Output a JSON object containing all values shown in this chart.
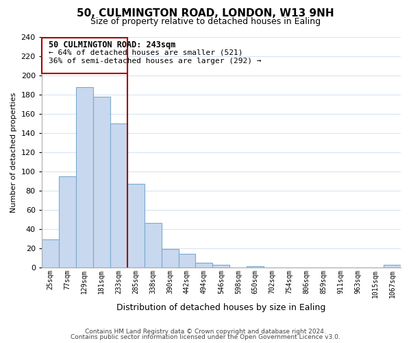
{
  "title": "50, CULMINGTON ROAD, LONDON, W13 9NH",
  "subtitle": "Size of property relative to detached houses in Ealing",
  "xlabel": "Distribution of detached houses by size in Ealing",
  "ylabel": "Number of detached properties",
  "bin_labels": [
    "25sqm",
    "77sqm",
    "129sqm",
    "181sqm",
    "233sqm",
    "285sqm",
    "338sqm",
    "390sqm",
    "442sqm",
    "494sqm",
    "546sqm",
    "598sqm",
    "650sqm",
    "702sqm",
    "754sqm",
    "806sqm",
    "859sqm",
    "911sqm",
    "963sqm",
    "1015sqm",
    "1067sqm"
  ],
  "bar_heights": [
    29,
    95,
    188,
    178,
    150,
    87,
    46,
    19,
    14,
    5,
    3,
    0,
    1,
    0,
    0,
    0,
    0,
    0,
    0,
    0,
    3
  ],
  "bar_color": "#c8d8ee",
  "bar_edge_color": "#7aaad0",
  "redline_bar_index": 4,
  "annotation_title": "50 CULMINGTON ROAD: 243sqm",
  "annotation_line1": "← 64% of detached houses are smaller (521)",
  "annotation_line2": "36% of semi-detached houses are larger (292) →",
  "annotation_box_color": "#ffffff",
  "annotation_box_edge": "#aa0000",
  "ylim": [
    0,
    240
  ],
  "yticks": [
    0,
    20,
    40,
    60,
    80,
    100,
    120,
    140,
    160,
    180,
    200,
    220,
    240
  ],
  "footnote1": "Contains HM Land Registry data © Crown copyright and database right 2024.",
  "footnote2": "Contains public sector information licensed under the Open Government Licence v3.0.",
  "bg_color": "#ffffff",
  "grid_color": "#d8e4f0",
  "redline_color": "#990000"
}
